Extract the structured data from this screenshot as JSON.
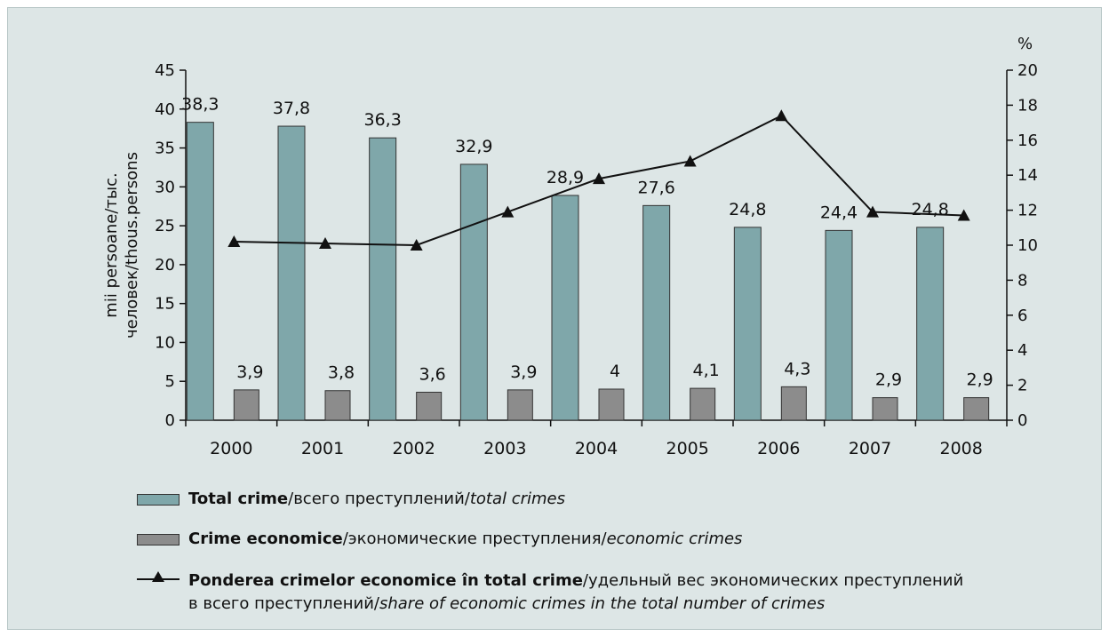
{
  "chart_data": {
    "type": "bar",
    "categories": [
      "2000",
      "2001",
      "2002",
      "2003",
      "2004",
      "2005",
      "2006",
      "2007",
      "2008"
    ],
    "series": [
      {
        "name": "Total crime",
        "kind": "bar",
        "axis": "left",
        "color": "#7fa7aa",
        "values": [
          38.3,
          37.8,
          36.3,
          32.9,
          28.9,
          27.6,
          24.8,
          24.4,
          24.8
        ],
        "labels": [
          "38,3",
          "37,8",
          "36,3",
          "32,9",
          "28,9",
          "27,6",
          "24,8",
          "24,4",
          "24,8"
        ]
      },
      {
        "name": "Crime economice",
        "kind": "bar",
        "axis": "left",
        "color": "#8c8c8c",
        "values": [
          3.9,
          3.8,
          3.6,
          3.9,
          4.0,
          4.1,
          4.3,
          2.9,
          2.9
        ],
        "labels": [
          "3,9",
          "3,8",
          "3,6",
          "3,9",
          "4",
          "4,1",
          "4,3",
          "2,9",
          "2,9"
        ]
      },
      {
        "name": "Ponderea crimelor economice în total crime",
        "kind": "line",
        "axis": "right",
        "color": "#111111",
        "values": [
          10.2,
          10.1,
          10.0,
          11.9,
          13.8,
          14.8,
          17.4,
          11.9,
          11.7
        ]
      }
    ],
    "ylabel": [
      "mii persoane/тыс.",
      "человек/thous.persons"
    ],
    "y2label": "%",
    "ylim": [
      0,
      45
    ],
    "yticks": [
      0,
      5,
      10,
      15,
      20,
      25,
      30,
      35,
      40,
      45
    ],
    "y2lim": [
      0,
      20
    ],
    "y2ticks": [
      0,
      2,
      4,
      6,
      8,
      10,
      12,
      14,
      16,
      18,
      20
    ],
    "grid": false,
    "legend_position": "bottom",
    "legend": [
      {
        "bold": "Total crime",
        "normal": "/всего преступлений/",
        "italic": "total crimes"
      },
      {
        "bold": "Crime economice",
        "normal": "/экономические преступления/",
        "italic": "economic crimes"
      },
      {
        "bold": "Ponderea crimelor economice în total crime",
        "normal": "/удельный вес экономических преступлений",
        "normal2": "в всего преступлений/",
        "italic": "share of economic crimes in the total number of crimes"
      }
    ]
  }
}
